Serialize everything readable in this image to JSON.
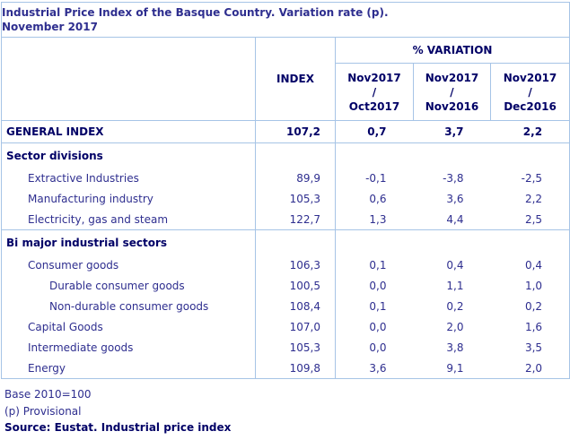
{
  "title": {
    "line1": "Industrial Price Index of the Basque Country. Variation rate (p).",
    "line2": "November 2017"
  },
  "table": {
    "index_label": "INDEX",
    "variation_label": "% VARIATION",
    "periods": [
      {
        "top": "Nov2017",
        "mid": "/",
        "bottom": "Oct2017"
      },
      {
        "top": "Nov2017",
        "mid": "/",
        "bottom": "Nov2016"
      },
      {
        "top": "Nov2017",
        "mid": "/",
        "bottom": "Dec2016"
      }
    ]
  },
  "chart_data": {
    "type": "table",
    "columns": [
      "",
      "INDEX",
      "Nov2017/Oct2017",
      "Nov2017/Nov2016",
      "Nov2017/Dec2016"
    ],
    "rows": [
      {
        "label": "GENERAL INDEX",
        "index": "107,2",
        "v1": "0,7",
        "v2": "3,7",
        "v3": "2,2"
      },
      {
        "label": "Sector divisions",
        "index": "",
        "v1": "",
        "v2": "",
        "v3": ""
      },
      {
        "label": "Extractive Industries",
        "index": "89,9",
        "v1": "-0,1",
        "v2": "-3,8",
        "v3": "-2,5"
      },
      {
        "label": "Manufacturing industry",
        "index": "105,3",
        "v1": "0,6",
        "v2": "3,6",
        "v3": "2,2"
      },
      {
        "label": "Electricity, gas and steam",
        "index": "122,7",
        "v1": "1,3",
        "v2": "4,4",
        "v3": "2,5"
      },
      {
        "label": "Bi major industrial sectors",
        "index": "",
        "v1": "",
        "v2": "",
        "v3": ""
      },
      {
        "label": "Consumer goods",
        "index": "106,3",
        "v1": "0,1",
        "v2": "0,4",
        "v3": "0,4"
      },
      {
        "label": "Durable consumer goods",
        "index": "100,5",
        "v1": "0,0",
        "v2": "1,1",
        "v3": "1,0"
      },
      {
        "label": "Non-durable consumer goods",
        "index": "108,4",
        "v1": "0,1",
        "v2": "0,2",
        "v3": "0,2"
      },
      {
        "label": "Capital Goods",
        "index": "107,0",
        "v1": "0,0",
        "v2": "2,0",
        "v3": "1,6"
      },
      {
        "label": "Intermediate goods",
        "index": "105,3",
        "v1": "0,0",
        "v2": "3,8",
        "v3": "3,5"
      },
      {
        "label": "Energy",
        "index": "109,8",
        "v1": "3,6",
        "v2": "9,1",
        "v3": "2,0"
      }
    ]
  },
  "footer": {
    "note_base": "Base 2010=100",
    "note_provisional": "(p) Provisional",
    "source": "Source: Eustat. Industrial price index"
  },
  "colors": {
    "heading_text": "#000066",
    "body_text": "#2e2e8f",
    "border": "#a6c4e6"
  }
}
